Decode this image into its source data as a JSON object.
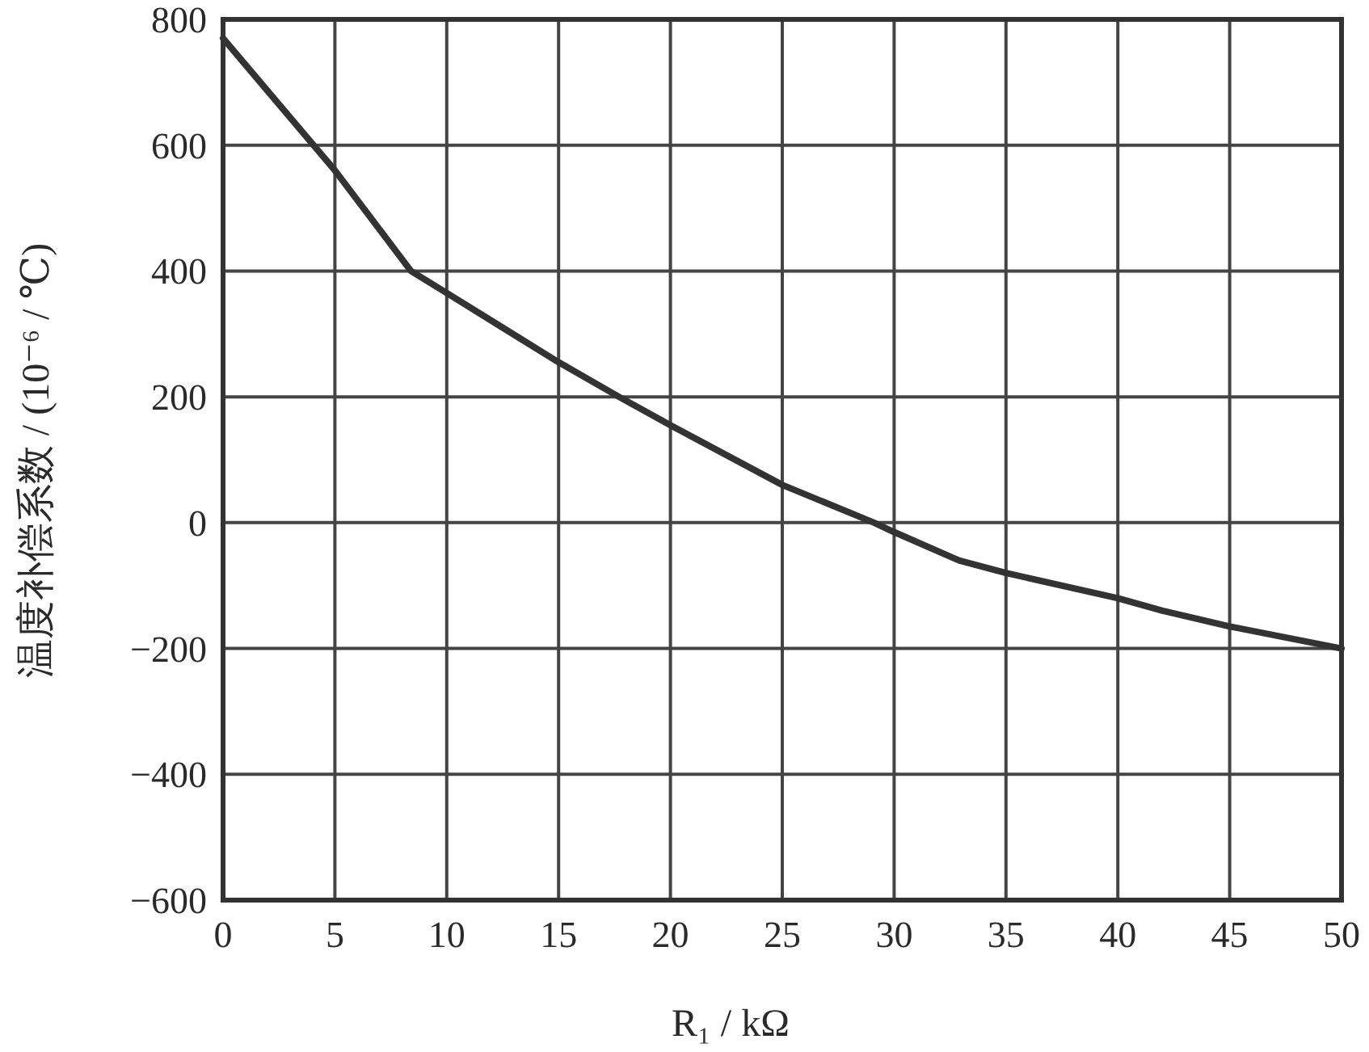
{
  "chart_data": {
    "type": "line",
    "xlabel": "R₁ / kΩ",
    "ylabel": "温度补偿系数 / (10⁻⁶ / ℃)",
    "x": [
      0,
      2.5,
      5,
      8.4,
      10,
      12.5,
      15,
      17.7,
      20,
      25,
      29.1,
      30,
      32.9,
      35,
      40,
      42,
      45,
      50
    ],
    "series": [
      {
        "color": "#333333",
        "values": [
          770,
          665,
          560,
          400,
          365,
          310,
          255,
          200,
          155,
          60,
          0,
          -15,
          -60,
          -80,
          -120,
          -140,
          -165,
          -200
        ]
      }
    ],
    "xlim": [
      0,
      50
    ],
    "ylim": [
      -600,
      800
    ],
    "xticks": [
      0,
      5,
      10,
      15,
      20,
      25,
      30,
      35,
      40,
      45,
      50
    ],
    "yticks": [
      -600,
      -400,
      -200,
      0,
      200,
      400,
      600,
      800
    ],
    "grid": true,
    "line_style": "solid"
  }
}
